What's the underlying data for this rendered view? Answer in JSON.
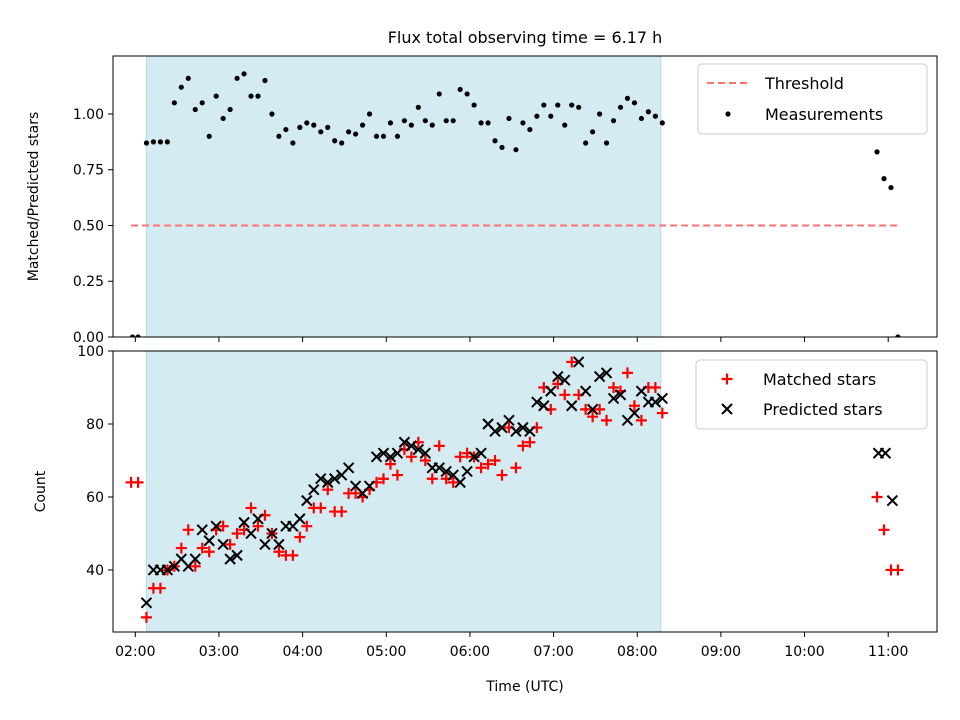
{
  "title": "Flux total observing time = 6.17 h",
  "chart_data": [
    {
      "type": "scatter",
      "panel": "top",
      "ylabel": "Matched/Predicted stars",
      "xlabel": "",
      "xlim": [
        "01:44",
        "11:35"
      ],
      "ylim": [
        0,
        1.26
      ],
      "yticks": [
        0.0,
        0.25,
        0.5,
        0.75,
        1.0
      ],
      "ytick_labels": [
        "0.00",
        "0.25",
        "0.50",
        "0.75",
        "1.00"
      ],
      "legend_position": "upper right",
      "observing_window": [
        "02:08",
        "08:17"
      ],
      "window_color": "#d3ebf1",
      "threshold": {
        "name": "Threshold",
        "y": 0.5,
        "x": [
          "01:57",
          "11:08"
        ],
        "color": "#ff7070"
      },
      "series": [
        {
          "name": "Measurements",
          "marker": "dot",
          "color": "#000000",
          "points": [
            [
              "01:58",
              0.0
            ],
            [
              "02:02",
              0.0
            ],
            [
              "02:08",
              0.87
            ],
            [
              "02:13",
              0.875
            ],
            [
              "02:18",
              0.875
            ],
            [
              "02:23",
              0.875
            ],
            [
              "02:28",
              1.05
            ],
            [
              "02:33",
              1.12
            ],
            [
              "02:38",
              1.16
            ],
            [
              "02:43",
              1.02
            ],
            [
              "02:48",
              1.05
            ],
            [
              "02:53",
              0.9
            ],
            [
              "02:58",
              1.08
            ],
            [
              "03:03",
              0.98
            ],
            [
              "03:08",
              1.02
            ],
            [
              "03:13",
              1.16
            ],
            [
              "03:18",
              1.18
            ],
            [
              "03:23",
              1.08
            ],
            [
              "03:28",
              1.08
            ],
            [
              "03:33",
              1.15
            ],
            [
              "03:38",
              1.0
            ],
            [
              "03:43",
              0.9
            ],
            [
              "03:48",
              0.93
            ],
            [
              "03:53",
              0.87
            ],
            [
              "03:58",
              0.94
            ],
            [
              "04:03",
              0.96
            ],
            [
              "04:08",
              0.95
            ],
            [
              "04:13",
              0.92
            ],
            [
              "04:18",
              0.94
            ],
            [
              "04:23",
              0.88
            ],
            [
              "04:28",
              0.87
            ],
            [
              "04:33",
              0.92
            ],
            [
              "04:38",
              0.91
            ],
            [
              "04:43",
              0.95
            ],
            [
              "04:48",
              1.0
            ],
            [
              "04:53",
              0.9
            ],
            [
              "04:58",
              0.9
            ],
            [
              "05:03",
              0.96
            ],
            [
              "05:08",
              0.9
            ],
            [
              "05:13",
              0.97
            ],
            [
              "05:18",
              0.95
            ],
            [
              "05:23",
              1.03
            ],
            [
              "05:28",
              0.97
            ],
            [
              "05:33",
              0.95
            ],
            [
              "05:38",
              1.09
            ],
            [
              "05:43",
              0.97
            ],
            [
              "05:48",
              0.97
            ],
            [
              "05:53",
              1.11
            ],
            [
              "05:58",
              1.09
            ],
            [
              "06:03",
              1.04
            ],
            [
              "06:08",
              0.96
            ],
            [
              "06:13",
              0.96
            ],
            [
              "06:18",
              0.88
            ],
            [
              "06:23",
              0.85
            ],
            [
              "06:28",
              0.98
            ],
            [
              "06:33",
              0.84
            ],
            [
              "06:38",
              0.96
            ],
            [
              "06:43",
              0.93
            ],
            [
              "06:48",
              0.99
            ],
            [
              "06:53",
              1.04
            ],
            [
              "06:58",
              0.99
            ],
            [
              "07:03",
              1.04
            ],
            [
              "07:08",
              0.95
            ],
            [
              "07:13",
              1.04
            ],
            [
              "07:18",
              1.03
            ],
            [
              "07:23",
              0.87
            ],
            [
              "07:28",
              0.92
            ],
            [
              "07:33",
              1.0
            ],
            [
              "07:38",
              0.87
            ],
            [
              "07:43",
              0.97
            ],
            [
              "07:48",
              1.03
            ],
            [
              "07:53",
              1.07
            ],
            [
              "07:58",
              1.05
            ],
            [
              "08:03",
              0.98
            ],
            [
              "08:08",
              1.01
            ],
            [
              "08:13",
              0.99
            ],
            [
              "08:18",
              0.96
            ],
            [
              "10:52",
              0.83
            ],
            [
              "10:57",
              0.71
            ],
            [
              "11:02",
              0.67
            ],
            [
              "11:07",
              0.0
            ]
          ]
        }
      ]
    },
    {
      "type": "scatter",
      "panel": "bottom",
      "ylabel": "Count",
      "xlabel": "Time (UTC)",
      "xlim": [
        "01:44",
        "11:35"
      ],
      "ylim": [
        23,
        100
      ],
      "yticks": [
        40,
        60,
        80,
        100
      ],
      "ytick_labels": [
        "40",
        "60",
        "80",
        "100"
      ],
      "xticks": [
        "02:00",
        "03:00",
        "04:00",
        "05:00",
        "06:00",
        "07:00",
        "08:00",
        "09:00",
        "10:00",
        "11:00"
      ],
      "legend_position": "upper right",
      "observing_window": [
        "02:08",
        "08:17"
      ],
      "series": [
        {
          "name": "Matched stars",
          "marker": "plus",
          "color": "#ff0000",
          "points": [
            [
              "01:57",
              64
            ],
            [
              "02:02",
              64
            ],
            [
              "02:08",
              27
            ],
            [
              "02:13",
              35
            ],
            [
              "02:18",
              35
            ],
            [
              "02:23",
              40
            ],
            [
              "02:28",
              41
            ],
            [
              "02:33",
              46
            ],
            [
              "02:38",
              51
            ],
            [
              "02:43",
              41
            ],
            [
              "02:48",
              46
            ],
            [
              "02:53",
              45
            ],
            [
              "02:58",
              51
            ],
            [
              "03:03",
              52
            ],
            [
              "03:08",
              47
            ],
            [
              "03:13",
              50
            ],
            [
              "03:18",
              51
            ],
            [
              "03:23",
              57
            ],
            [
              "03:28",
              52
            ],
            [
              "03:33",
              55
            ],
            [
              "03:38",
              50
            ],
            [
              "03:43",
              45
            ],
            [
              "03:48",
              44
            ],
            [
              "03:53",
              44
            ],
            [
              "03:58",
              49
            ],
            [
              "04:03",
              52
            ],
            [
              "04:08",
              57
            ],
            [
              "04:13",
              57
            ],
            [
              "04:18",
              62
            ],
            [
              "04:23",
              56
            ],
            [
              "04:28",
              56
            ],
            [
              "04:33",
              61
            ],
            [
              "04:38",
              61
            ],
            [
              "04:43",
              60
            ],
            [
              "04:48",
              62
            ],
            [
              "04:53",
              64
            ],
            [
              "04:58",
              65
            ],
            [
              "05:03",
              69
            ],
            [
              "05:08",
              66
            ],
            [
              "05:13",
              73
            ],
            [
              "05:18",
              71
            ],
            [
              "05:23",
              75
            ],
            [
              "05:28",
              70
            ],
            [
              "05:33",
              65
            ],
            [
              "05:38",
              74
            ],
            [
              "05:43",
              65
            ],
            [
              "05:48",
              64
            ],
            [
              "05:53",
              71
            ],
            [
              "05:58",
              72
            ],
            [
              "06:03",
              71
            ],
            [
              "06:08",
              68
            ],
            [
              "06:13",
              69
            ],
            [
              "06:18",
              70
            ],
            [
              "06:23",
              66
            ],
            [
              "06:28",
              79
            ],
            [
              "06:33",
              68
            ],
            [
              "06:38",
              74
            ],
            [
              "06:43",
              75
            ],
            [
              "06:48",
              79
            ],
            [
              "06:53",
              90
            ],
            [
              "06:58",
              84
            ],
            [
              "07:03",
              91
            ],
            [
              "07:08",
              88
            ],
            [
              "07:13",
              97
            ],
            [
              "07:18",
              88
            ],
            [
              "07:23",
              84
            ],
            [
              "07:28",
              82
            ],
            [
              "07:33",
              84
            ],
            [
              "07:38",
              81
            ],
            [
              "07:43",
              90
            ],
            [
              "07:48",
              89
            ],
            [
              "07:53",
              94
            ],
            [
              "07:58",
              85
            ],
            [
              "08:03",
              81
            ],
            [
              "08:08",
              90
            ],
            [
              "08:13",
              90
            ],
            [
              "08:18",
              83
            ],
            [
              "10:52",
              60
            ],
            [
              "10:57",
              51
            ],
            [
              "11:02",
              40
            ],
            [
              "11:07",
              40
            ]
          ]
        },
        {
          "name": "Predicted stars",
          "marker": "x",
          "color": "#000000",
          "points": [
            [
              "02:08",
              31
            ],
            [
              "02:13",
              40
            ],
            [
              "02:18",
              40
            ],
            [
              "02:23",
              40
            ],
            [
              "02:28",
              41
            ],
            [
              "02:33",
              43
            ],
            [
              "02:38",
              41
            ],
            [
              "02:43",
              43
            ],
            [
              "02:48",
              51
            ],
            [
              "02:53",
              48
            ],
            [
              "02:58",
              52
            ],
            [
              "03:03",
              47
            ],
            [
              "03:08",
              43
            ],
            [
              "03:13",
              44
            ],
            [
              "03:18",
              53
            ],
            [
              "03:23",
              50
            ],
            [
              "03:28",
              54
            ],
            [
              "03:33",
              47
            ],
            [
              "03:38",
              50
            ],
            [
              "03:43",
              47
            ],
            [
              "03:48",
              52
            ],
            [
              "03:53",
              52
            ],
            [
              "03:58",
              54
            ],
            [
              "04:03",
              59
            ],
            [
              "04:08",
              62
            ],
            [
              "04:13",
              65
            ],
            [
              "04:18",
              64
            ],
            [
              "04:23",
              65
            ],
            [
              "04:28",
              66
            ],
            [
              "04:33",
              68
            ],
            [
              "04:38",
              63
            ],
            [
              "04:43",
              61
            ],
            [
              "04:48",
              63
            ],
            [
              "04:53",
              71
            ],
            [
              "04:58",
              72
            ],
            [
              "05:03",
              71
            ],
            [
              "05:08",
              72
            ],
            [
              "05:13",
              75
            ],
            [
              "05:18",
              74
            ],
            [
              "05:23",
              73
            ],
            [
              "05:28",
              72
            ],
            [
              "05:33",
              68
            ],
            [
              "05:38",
              68
            ],
            [
              "05:43",
              67
            ],
            [
              "05:48",
              66
            ],
            [
              "05:53",
              64
            ],
            [
              "05:58",
              67
            ],
            [
              "06:03",
              71
            ],
            [
              "06:08",
              72
            ],
            [
              "06:13",
              80
            ],
            [
              "06:18",
              78
            ],
            [
              "06:23",
              79
            ],
            [
              "06:28",
              81
            ],
            [
              "06:33",
              78
            ],
            [
              "06:38",
              79
            ],
            [
              "06:43",
              78
            ],
            [
              "06:48",
              86
            ],
            [
              "06:53",
              85
            ],
            [
              "06:58",
              89
            ],
            [
              "07:03",
              93
            ],
            [
              "07:08",
              92
            ],
            [
              "07:13",
              85
            ],
            [
              "07:18",
              97
            ],
            [
              "07:23",
              89
            ],
            [
              "07:28",
              84
            ],
            [
              "07:33",
              93
            ],
            [
              "07:38",
              94
            ],
            [
              "07:43",
              87
            ],
            [
              "07:48",
              88
            ],
            [
              "07:53",
              81
            ],
            [
              "07:58",
              83
            ],
            [
              "08:03",
              89
            ],
            [
              "08:08",
              86
            ],
            [
              "08:13",
              86
            ],
            [
              "08:18",
              87
            ],
            [
              "10:53",
              72
            ],
            [
              "10:58",
              72
            ],
            [
              "11:03",
              59
            ]
          ]
        }
      ]
    }
  ]
}
